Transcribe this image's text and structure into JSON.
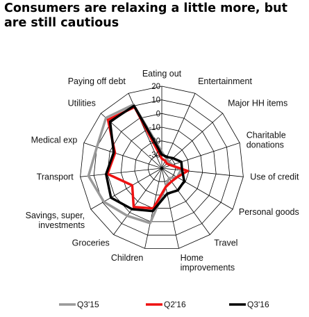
{
  "page": {
    "title": "Consumers are relaxing a little more, but are still cautious"
  },
  "chart_data": {
    "type": "radar",
    "categories": [
      "Eating out",
      "Entertainment",
      "Major HH items",
      "Charitable donations",
      "Use of credit",
      "Personal goods",
      "Travel",
      "Home improvements",
      "Children",
      "Groceries",
      "Savings, super, investments",
      "Transport",
      "Medical exp",
      "Utilities",
      "Paying off debt"
    ],
    "category_lines": [
      [
        "Eating out"
      ],
      [
        "Entertainment"
      ],
      [
        "Major HH items"
      ],
      [
        "Charitable",
        "donations"
      ],
      [
        "Use of credit"
      ],
      [
        "Personal goods"
      ],
      [
        "Travel"
      ],
      [
        "Home",
        "improvements"
      ],
      [
        "Children"
      ],
      [
        "Groceries"
      ],
      [
        "Savings, super,",
        "investments"
      ],
      [
        "Transport"
      ],
      [
        "Medical exp"
      ],
      [
        "Utilities"
      ],
      [
        "Paying off debt"
      ]
    ],
    "axis": {
      "min": -40,
      "max": 20,
      "ticks": [
        20,
        10,
        0,
        -10,
        -20,
        -30
      ]
    },
    "grid": true,
    "legend_position": "bottom",
    "series": [
      {
        "name": "Q3'15",
        "color": "#999999",
        "values": [
          -28,
          -32,
          -33,
          -32,
          -26,
          -27,
          -31,
          -26,
          1,
          3,
          9,
          14,
          10,
          15,
          11
        ]
      },
      {
        "name": "Q2'16",
        "color": "#ee1111",
        "values": [
          -33,
          -34,
          -35,
          -33,
          -21,
          -27,
          -28,
          -26,
          -10,
          -5,
          -15,
          0,
          -4,
          13,
          9
        ]
      },
      {
        "name": "Q3'16",
        "color": "#000000",
        "values": [
          -30,
          -31,
          -29,
          -25,
          -25,
          -21,
          -20,
          -21,
          -8,
          -3,
          3,
          1,
          -3,
          11,
          10
        ]
      }
    ]
  }
}
